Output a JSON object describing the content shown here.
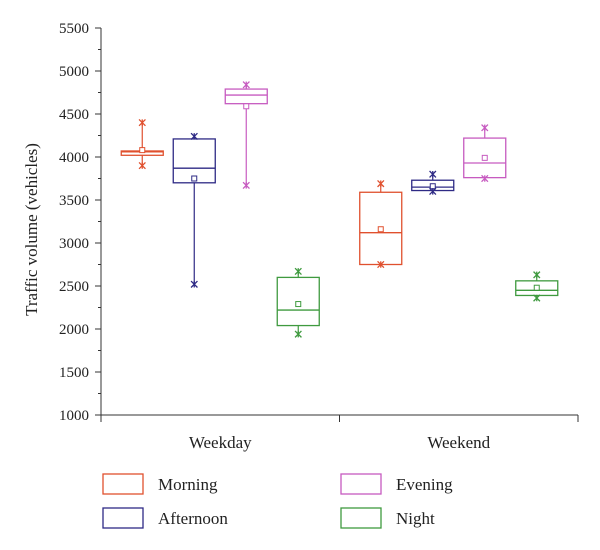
{
  "chart_data": {
    "type": "box",
    "title": "",
    "ylabel": "Traffic volume (vehicles)",
    "xlabel": "",
    "ylim": [
      1000,
      5500
    ],
    "yticks": [
      1000,
      1500,
      2000,
      2500,
      3000,
      3500,
      4000,
      4500,
      5000,
      5500
    ],
    "categories": [
      "Weekday",
      "Weekend"
    ],
    "legend_position": "bottom",
    "series": [
      {
        "name": "Morning",
        "color": "#e0502e",
        "boxes": [
          {
            "category": "Weekday",
            "min": 3900,
            "q1": 4020,
            "median": 4060,
            "q3": 4070,
            "max": 4400,
            "mean": 4080,
            "outliers_x": [
              3900,
              4400
            ]
          },
          {
            "category": "Weekend",
            "min": 2750,
            "q1": 2750,
            "median": 3120,
            "q3": 3590,
            "max": 3690,
            "mean": 3160,
            "outliers_x": [
              2750,
              3690
            ]
          }
        ]
      },
      {
        "name": "Afternoon",
        "color": "#2e2a85",
        "boxes": [
          {
            "category": "Weekday",
            "min": 2520,
            "q1": 3700,
            "median": 3870,
            "q3": 4210,
            "max": 4240,
            "mean": 3750,
            "outliers_x": [
              2520,
              4240
            ]
          },
          {
            "category": "Weekend",
            "min": 3600,
            "q1": 3610,
            "median": 3650,
            "q3": 3730,
            "max": 3800,
            "mean": 3660,
            "outliers_x": [
              3600,
              3800
            ]
          }
        ]
      },
      {
        "name": "Evening",
        "color": "#c75bc0",
        "boxes": [
          {
            "category": "Weekday",
            "min": 3670,
            "q1": 4620,
            "median": 4720,
            "q3": 4790,
            "max": 4840,
            "mean": 4590,
            "outliers_x": [
              3670,
              4840
            ]
          },
          {
            "category": "Weekend",
            "min": 3750,
            "q1": 3760,
            "median": 3930,
            "q3": 4220,
            "max": 4340,
            "mean": 3990,
            "outliers_x": [
              3750,
              4340
            ]
          }
        ]
      },
      {
        "name": "Night",
        "color": "#3f9a3f",
        "boxes": [
          {
            "category": "Weekday",
            "min": 1940,
            "q1": 2040,
            "median": 2220,
            "q3": 2600,
            "max": 2670,
            "mean": 2290,
            "outliers_x": [
              1940,
              2670
            ]
          },
          {
            "category": "Weekend",
            "min": 2360,
            "q1": 2390,
            "median": 2450,
            "q3": 2560,
            "max": 2630,
            "mean": 2480,
            "outliers_x": [
              2360,
              2630
            ]
          }
        ]
      }
    ]
  }
}
